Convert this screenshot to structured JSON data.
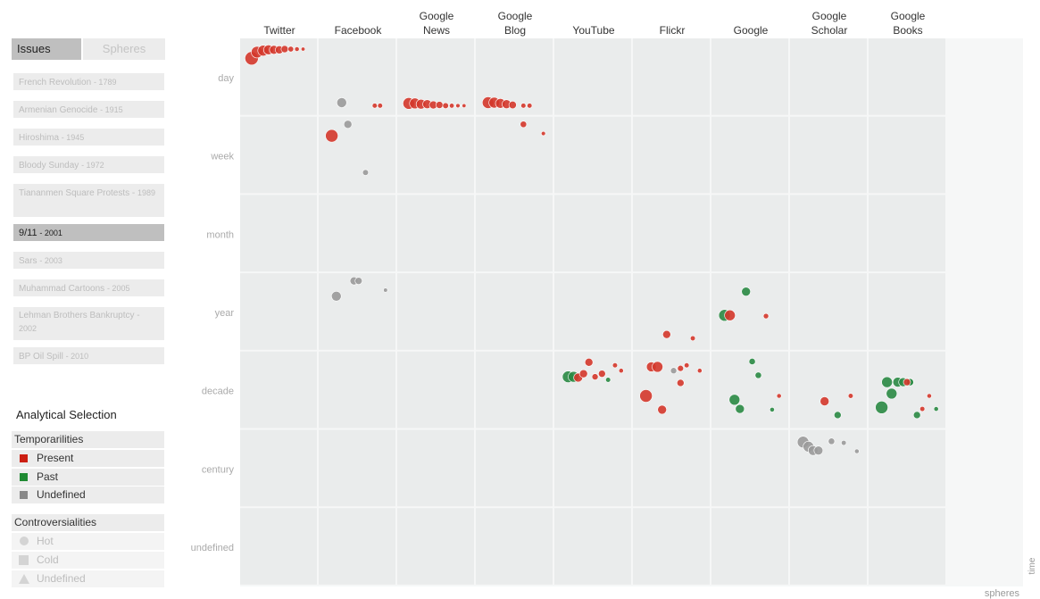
{
  "sidebar": {
    "tabs": [
      {
        "label": "Issues",
        "active": true
      },
      {
        "label": "Spheres",
        "active": false
      }
    ],
    "issues": [
      {
        "name": "French Revolution",
        "year": "- 1789",
        "selected": false
      },
      {
        "name": "Armenian Genocide",
        "year": "- 1915",
        "selected": false
      },
      {
        "name": "Hiroshima",
        "year": "- 1945",
        "selected": false
      },
      {
        "name": "Bloody Sunday",
        "year": "- 1972",
        "selected": false
      },
      {
        "name": "Tiananmen Square Protests -",
        "year": "1989",
        "selected": false
      },
      {
        "name": "9/11",
        "year": "- 2001",
        "selected": true
      },
      {
        "name": "Sars",
        "year": "- 2003",
        "selected": false
      },
      {
        "name": "Muhammad Cartoons",
        "year": "- 2005",
        "selected": false
      },
      {
        "name": "Lehman Brothers Bankruptcy -",
        "year": "2002",
        "selected": false
      },
      {
        "name": "BP Oil Spill",
        "year": "- 2010",
        "selected": false
      }
    ],
    "analytical_title": "Analytical Selection",
    "temporalities": {
      "title": "Temporarilities",
      "items": [
        {
          "label": "Present",
          "color": "#cc1f12"
        },
        {
          "label": "Past",
          "color": "#1f8a32"
        },
        {
          "label": "Undefined",
          "color": "#888888"
        }
      ]
    },
    "controversialities": {
      "title": "Controversialities",
      "items": [
        {
          "label": "Hot",
          "icon": "circle-icon"
        },
        {
          "label": "Cold",
          "icon": "square-icon"
        },
        {
          "label": "Undefined",
          "icon": "triangle-icon"
        }
      ]
    }
  },
  "chart_data": {
    "type": "scatter",
    "xlabel": "spheres",
    "ylabel": "time",
    "categories": [
      "Twitter",
      "Facebook",
      "Google News",
      "Google Blog",
      "YouTube",
      "Flickr",
      "Google",
      "Google Scholar",
      "Google Books"
    ],
    "rows": [
      "day",
      "week",
      "month",
      "year",
      "decade",
      "century",
      "undefined"
    ],
    "colors": {
      "present": "#d4372b",
      "past": "#2a8a44",
      "undefined": "#9a9a9a"
    },
    "points": [
      {
        "sphere": "Twitter",
        "time": "day",
        "dx": 0.15,
        "dy": 0.26,
        "size": 7.5,
        "temporality": "present"
      },
      {
        "sphere": "Twitter",
        "time": "day",
        "dx": 0.22,
        "dy": 0.18,
        "size": 6.5,
        "temporality": "present"
      },
      {
        "sphere": "Twitter",
        "time": "day",
        "dx": 0.3,
        "dy": 0.16,
        "size": 6.0,
        "temporality": "present"
      },
      {
        "sphere": "Twitter",
        "time": "day",
        "dx": 0.37,
        "dy": 0.15,
        "size": 5.5,
        "temporality": "present"
      },
      {
        "sphere": "Twitter",
        "time": "day",
        "dx": 0.44,
        "dy": 0.15,
        "size": 5.0,
        "temporality": "present"
      },
      {
        "sphere": "Twitter",
        "time": "day",
        "dx": 0.51,
        "dy": 0.15,
        "size": 4.5,
        "temporality": "present"
      },
      {
        "sphere": "Twitter",
        "time": "day",
        "dx": 0.58,
        "dy": 0.14,
        "size": 4.0,
        "temporality": "present"
      },
      {
        "sphere": "Twitter",
        "time": "day",
        "dx": 0.66,
        "dy": 0.14,
        "size": 3.2,
        "temporality": "present"
      },
      {
        "sphere": "Twitter",
        "time": "day",
        "dx": 0.74,
        "dy": 0.14,
        "size": 2.6,
        "temporality": "present"
      },
      {
        "sphere": "Twitter",
        "time": "day",
        "dx": 0.82,
        "dy": 0.14,
        "size": 2.2,
        "temporality": "present"
      },
      {
        "sphere": "Facebook",
        "time": "day",
        "dx": 0.3,
        "dy": 0.84,
        "size": 5.5,
        "temporality": "undefined"
      },
      {
        "sphere": "Facebook",
        "time": "day",
        "dx": 0.73,
        "dy": 0.88,
        "size": 2.8,
        "temporality": "present"
      },
      {
        "sphere": "Facebook",
        "time": "day",
        "dx": 0.8,
        "dy": 0.88,
        "size": 2.8,
        "temporality": "present"
      },
      {
        "sphere": "Facebook",
        "time": "week",
        "dx": 0.17,
        "dy": 0.25,
        "size": 7.0,
        "temporality": "present"
      },
      {
        "sphere": "Facebook",
        "time": "week",
        "dx": 0.38,
        "dy": 0.1,
        "size": 4.5,
        "temporality": "undefined"
      },
      {
        "sphere": "Facebook",
        "time": "week",
        "dx": 0.61,
        "dy": 0.73,
        "size": 3.3,
        "temporality": "undefined"
      },
      {
        "sphere": "Facebook",
        "time": "year",
        "dx": 0.46,
        "dy": 0.1,
        "size": 4.5,
        "temporality": "undefined"
      },
      {
        "sphere": "Facebook",
        "time": "year",
        "dx": 0.52,
        "dy": 0.1,
        "size": 4.0,
        "temporality": "undefined"
      },
      {
        "sphere": "Facebook",
        "time": "year",
        "dx": 0.23,
        "dy": 0.3,
        "size": 5.5,
        "temporality": "undefined"
      },
      {
        "sphere": "Facebook",
        "time": "year",
        "dx": 0.87,
        "dy": 0.22,
        "size": 2.3,
        "temporality": "undefined"
      },
      {
        "sphere": "Google News",
        "time": "day",
        "dx": 0.15,
        "dy": 0.85,
        "size": 6.5,
        "temporality": "present"
      },
      {
        "sphere": "Google News",
        "time": "day",
        "dx": 0.23,
        "dy": 0.85,
        "size": 6.0,
        "temporality": "present"
      },
      {
        "sphere": "Google News",
        "time": "day",
        "dx": 0.31,
        "dy": 0.86,
        "size": 5.5,
        "temporality": "present"
      },
      {
        "sphere": "Google News",
        "time": "day",
        "dx": 0.39,
        "dy": 0.86,
        "size": 5.0,
        "temporality": "present"
      },
      {
        "sphere": "Google News",
        "time": "day",
        "dx": 0.47,
        "dy": 0.87,
        "size": 4.5,
        "temporality": "present"
      },
      {
        "sphere": "Google News",
        "time": "day",
        "dx": 0.55,
        "dy": 0.87,
        "size": 4.0,
        "temporality": "present"
      },
      {
        "sphere": "Google News",
        "time": "day",
        "dx": 0.63,
        "dy": 0.88,
        "size": 3.3,
        "temporality": "present"
      },
      {
        "sphere": "Google News",
        "time": "day",
        "dx": 0.71,
        "dy": 0.88,
        "size": 2.7,
        "temporality": "present"
      },
      {
        "sphere": "Google News",
        "time": "day",
        "dx": 0.79,
        "dy": 0.88,
        "size": 2.4,
        "temporality": "present"
      },
      {
        "sphere": "Google News",
        "time": "day",
        "dx": 0.87,
        "dy": 0.88,
        "size": 2.2,
        "temporality": "present"
      },
      {
        "sphere": "Google Blog",
        "time": "day",
        "dx": 0.16,
        "dy": 0.84,
        "size": 6.5,
        "temporality": "present"
      },
      {
        "sphere": "Google Blog",
        "time": "day",
        "dx": 0.24,
        "dy": 0.84,
        "size": 6.0,
        "temporality": "present"
      },
      {
        "sphere": "Google Blog",
        "time": "day",
        "dx": 0.32,
        "dy": 0.85,
        "size": 5.5,
        "temporality": "present"
      },
      {
        "sphere": "Google Blog",
        "time": "day",
        "dx": 0.4,
        "dy": 0.86,
        "size": 5.0,
        "temporality": "present"
      },
      {
        "sphere": "Google Blog",
        "time": "day",
        "dx": 0.48,
        "dy": 0.87,
        "size": 4.2,
        "temporality": "present"
      },
      {
        "sphere": "Google Blog",
        "time": "day",
        "dx": 0.62,
        "dy": 0.88,
        "size": 2.8,
        "temporality": "present"
      },
      {
        "sphere": "Google Blog",
        "time": "day",
        "dx": 0.7,
        "dy": 0.88,
        "size": 2.8,
        "temporality": "present"
      },
      {
        "sphere": "Google Blog",
        "time": "week",
        "dx": 0.62,
        "dy": 0.1,
        "size": 3.6,
        "temporality": "present"
      },
      {
        "sphere": "Google Blog",
        "time": "week",
        "dx": 0.88,
        "dy": 0.22,
        "size": 2.4,
        "temporality": "present"
      },
      {
        "sphere": "YouTube",
        "time": "decade",
        "dx": 0.18,
        "dy": 0.33,
        "size": 6.5,
        "temporality": "past"
      },
      {
        "sphere": "YouTube",
        "time": "decade",
        "dx": 0.25,
        "dy": 0.33,
        "size": 6.0,
        "temporality": "past"
      },
      {
        "sphere": "YouTube",
        "time": "decade",
        "dx": 0.31,
        "dy": 0.34,
        "size": 5.0,
        "temporality": "present"
      },
      {
        "sphere": "YouTube",
        "time": "decade",
        "dx": 0.38,
        "dy": 0.29,
        "size": 4.5,
        "temporality": "present"
      },
      {
        "sphere": "YouTube",
        "time": "decade",
        "dx": 0.45,
        "dy": 0.14,
        "size": 4.5,
        "temporality": "present"
      },
      {
        "sphere": "YouTube",
        "time": "decade",
        "dx": 0.53,
        "dy": 0.33,
        "size": 3.5,
        "temporality": "present"
      },
      {
        "sphere": "YouTube",
        "time": "decade",
        "dx": 0.62,
        "dy": 0.29,
        "size": 4.0,
        "temporality": "present"
      },
      {
        "sphere": "YouTube",
        "time": "decade",
        "dx": 0.7,
        "dy": 0.37,
        "size": 2.8,
        "temporality": "past"
      },
      {
        "sphere": "YouTube",
        "time": "decade",
        "dx": 0.79,
        "dy": 0.18,
        "size": 2.8,
        "temporality": "present"
      },
      {
        "sphere": "YouTube",
        "time": "decade",
        "dx": 0.87,
        "dy": 0.25,
        "size": 2.6,
        "temporality": "present"
      },
      {
        "sphere": "Flickr",
        "time": "year",
        "dx": 0.44,
        "dy": 0.8,
        "size": 4.5,
        "temporality": "present"
      },
      {
        "sphere": "Flickr",
        "time": "year",
        "dx": 0.78,
        "dy": 0.85,
        "size": 2.8,
        "temporality": "present"
      },
      {
        "sphere": "Flickr",
        "time": "decade",
        "dx": 0.24,
        "dy": 0.2,
        "size": 5.5,
        "temporality": "present"
      },
      {
        "sphere": "Flickr",
        "time": "decade",
        "dx": 0.32,
        "dy": 0.2,
        "size": 6.0,
        "temporality": "present"
      },
      {
        "sphere": "Flickr",
        "time": "decade",
        "dx": 0.53,
        "dy": 0.25,
        "size": 3.5,
        "temporality": "undefined"
      },
      {
        "sphere": "Flickr",
        "time": "decade",
        "dx": 0.62,
        "dy": 0.22,
        "size": 3.4,
        "temporality": "present"
      },
      {
        "sphere": "Flickr",
        "time": "decade",
        "dx": 0.7,
        "dy": 0.18,
        "size": 2.8,
        "temporality": "present"
      },
      {
        "sphere": "Flickr",
        "time": "decade",
        "dx": 0.87,
        "dy": 0.25,
        "size": 2.6,
        "temporality": "present"
      },
      {
        "sphere": "Flickr",
        "time": "decade",
        "dx": 0.62,
        "dy": 0.41,
        "size": 4.0,
        "temporality": "present"
      },
      {
        "sphere": "Flickr",
        "time": "decade",
        "dx": 0.17,
        "dy": 0.58,
        "size": 7.0,
        "temporality": "present"
      },
      {
        "sphere": "Flickr",
        "time": "decade",
        "dx": 0.38,
        "dy": 0.76,
        "size": 5.0,
        "temporality": "present"
      },
      {
        "sphere": "Google",
        "time": "year",
        "dx": 0.45,
        "dy": 0.24,
        "size": 5.0,
        "temporality": "past"
      },
      {
        "sphere": "Google",
        "time": "year",
        "dx": 0.17,
        "dy": 0.55,
        "size": 6.5,
        "temporality": "past"
      },
      {
        "sphere": "Google",
        "time": "year",
        "dx": 0.24,
        "dy": 0.55,
        "size": 6.0,
        "temporality": "present"
      },
      {
        "sphere": "Google",
        "time": "year",
        "dx": 0.71,
        "dy": 0.56,
        "size": 3.0,
        "temporality": "present"
      },
      {
        "sphere": "Google",
        "time": "decade",
        "dx": 0.53,
        "dy": 0.13,
        "size": 3.6,
        "temporality": "past"
      },
      {
        "sphere": "Google",
        "time": "decade",
        "dx": 0.61,
        "dy": 0.31,
        "size": 3.6,
        "temporality": "past"
      },
      {
        "sphere": "Google",
        "time": "decade",
        "dx": 0.3,
        "dy": 0.63,
        "size": 6.0,
        "temporality": "past"
      },
      {
        "sphere": "Google",
        "time": "decade",
        "dx": 0.37,
        "dy": 0.75,
        "size": 5.0,
        "temporality": "past"
      },
      {
        "sphere": "Google",
        "time": "decade",
        "dx": 0.79,
        "dy": 0.76,
        "size": 2.6,
        "temporality": "past"
      },
      {
        "sphere": "Google",
        "time": "decade",
        "dx": 0.88,
        "dy": 0.58,
        "size": 2.6,
        "temporality": "present"
      },
      {
        "sphere": "Google Scholar",
        "time": "decade",
        "dx": 0.45,
        "dy": 0.65,
        "size": 5.0,
        "temporality": "present"
      },
      {
        "sphere": "Google Scholar",
        "time": "decade",
        "dx": 0.79,
        "dy": 0.58,
        "size": 2.8,
        "temporality": "present"
      },
      {
        "sphere": "Google Scholar",
        "time": "decade",
        "dx": 0.62,
        "dy": 0.83,
        "size": 4.0,
        "temporality": "past"
      },
      {
        "sphere": "Google Scholar",
        "time": "century",
        "dx": 0.17,
        "dy": 0.16,
        "size": 6.5,
        "temporality": "undefined"
      },
      {
        "sphere": "Google Scholar",
        "time": "century",
        "dx": 0.24,
        "dy": 0.22,
        "size": 6.0,
        "temporality": "undefined"
      },
      {
        "sphere": "Google Scholar",
        "time": "century",
        "dx": 0.3,
        "dy": 0.27,
        "size": 5.5,
        "temporality": "undefined"
      },
      {
        "sphere": "Google Scholar",
        "time": "century",
        "dx": 0.37,
        "dy": 0.27,
        "size": 5.0,
        "temporality": "undefined"
      },
      {
        "sphere": "Google Scholar",
        "time": "century",
        "dx": 0.54,
        "dy": 0.15,
        "size": 3.6,
        "temporality": "undefined"
      },
      {
        "sphere": "Google Scholar",
        "time": "century",
        "dx": 0.7,
        "dy": 0.17,
        "size": 2.8,
        "temporality": "undefined"
      },
      {
        "sphere": "Google Scholar",
        "time": "century",
        "dx": 0.87,
        "dy": 0.28,
        "size": 2.6,
        "temporality": "undefined"
      },
      {
        "sphere": "Google Books",
        "time": "decade",
        "dx": 0.24,
        "dy": 0.4,
        "size": 6.0,
        "temporality": "past"
      },
      {
        "sphere": "Google Books",
        "time": "decade",
        "dx": 0.38,
        "dy": 0.4,
        "size": 5.5,
        "temporality": "past"
      },
      {
        "sphere": "Google Books",
        "time": "decade",
        "dx": 0.45,
        "dy": 0.4,
        "size": 5.0,
        "temporality": "past"
      },
      {
        "sphere": "Google Books",
        "time": "decade",
        "dx": 0.53,
        "dy": 0.4,
        "size": 4.5,
        "temporality": "past"
      },
      {
        "sphere": "Google Books",
        "time": "decade",
        "dx": 0.54,
        "dy": 0.4,
        "size": 4.0,
        "temporality": "past"
      },
      {
        "sphere": "Google Books",
        "time": "decade",
        "dx": 0.3,
        "dy": 0.55,
        "size": 6.0,
        "temporality": "past"
      },
      {
        "sphere": "Google Books",
        "time": "decade",
        "dx": 0.17,
        "dy": 0.73,
        "size": 7.0,
        "temporality": "past"
      },
      {
        "sphere": "Google Books",
        "time": "decade",
        "dx": 0.63,
        "dy": 0.83,
        "size": 4.0,
        "temporality": "past"
      },
      {
        "sphere": "Google Books",
        "time": "decade",
        "dx": 0.7,
        "dy": 0.75,
        "size": 2.8,
        "temporality": "present"
      },
      {
        "sphere": "Google Books",
        "time": "decade",
        "dx": 0.79,
        "dy": 0.58,
        "size": 2.6,
        "temporality": "present"
      },
      {
        "sphere": "Google Books",
        "time": "decade",
        "dx": 0.88,
        "dy": 0.75,
        "size": 2.6,
        "temporality": "past"
      },
      {
        "sphere": "Google Books",
        "time": "decade",
        "dx": 0.5,
        "dy": 0.4,
        "size": 4.0,
        "temporality": "present"
      }
    ]
  }
}
